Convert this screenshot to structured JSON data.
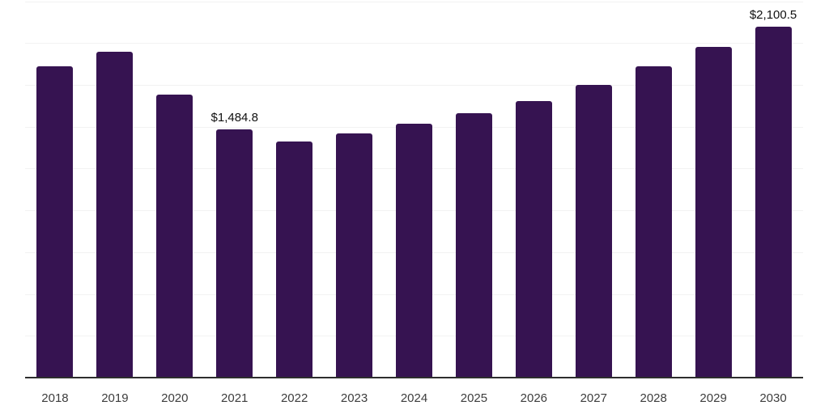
{
  "chart_data": {
    "type": "bar",
    "title": "",
    "xlabel": "",
    "ylabel": "",
    "categories": [
      "2018",
      "2019",
      "2020",
      "2021",
      "2022",
      "2023",
      "2024",
      "2025",
      "2026",
      "2027",
      "2028",
      "2029",
      "2030"
    ],
    "values": [
      1864,
      1951,
      1692,
      1484.8,
      1411,
      1459,
      1518,
      1583,
      1656,
      1752,
      1860,
      1978,
      2100.5
    ],
    "point_labels": [
      "",
      "",
      "",
      "$1,484.8",
      "",
      "",
      "",
      "",
      "",
      "",
      "",
      "",
      "$2,100.5"
    ],
    "ylim": [
      0,
      2258
    ],
    "grid": true,
    "grid_interval": 250,
    "grid_max": 2250,
    "legend": false,
    "colors": {
      "bar": "#361351",
      "grid": "#f2f2f2",
      "axis_line": "#2e2e2e",
      "tick_label": "#3d3d3d",
      "value_label": "#101010",
      "background": "#ffffff"
    }
  }
}
